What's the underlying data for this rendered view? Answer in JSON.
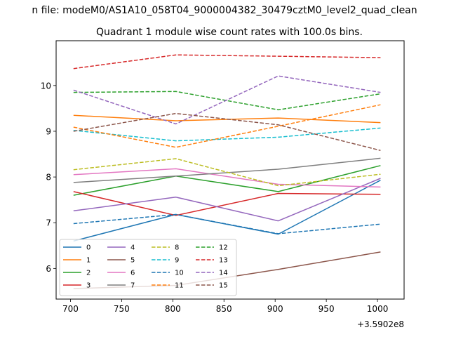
{
  "chart_data": {
    "type": "line",
    "suptitle": "n file: modeM0/AS1A10_058T04_9000004382_30479cztM0_level2_quad_clean",
    "title": "Quadrant 1 module wise count rates with 100.0s bins.",
    "xlabel": "",
    "ylabel": "",
    "x_offset_text": "+3.5902e8",
    "x_ticks": [
      "700",
      "750",
      "800",
      "850",
      "900",
      "950",
      "1000"
    ],
    "y_ticks": [
      "6",
      "7",
      "8",
      "9",
      "10"
    ],
    "xlim": [
      686,
      1026
    ],
    "ylim": [
      5.33,
      10.98
    ],
    "grid": false,
    "legend_position": "lower-left",
    "legend_columns": 4,
    "x": [
      703,
      803,
      903,
      1003
    ],
    "series": [
      {
        "name": "0",
        "color": "#1f77b4",
        "dash": "solid",
        "values": [
          6.6,
          7.18,
          6.75,
          7.93
        ]
      },
      {
        "name": "1",
        "color": "#ff7f0e",
        "dash": "solid",
        "values": [
          9.35,
          9.23,
          9.29,
          9.19
        ]
      },
      {
        "name": "2",
        "color": "#2ca02c",
        "dash": "solid",
        "values": [
          7.6,
          8.02,
          7.68,
          8.25
        ]
      },
      {
        "name": "3",
        "color": "#d62728",
        "dash": "solid",
        "values": [
          7.68,
          7.16,
          7.64,
          7.62
        ]
      },
      {
        "name": "4",
        "color": "#9467bd",
        "dash": "solid",
        "values": [
          7.26,
          7.56,
          7.04,
          7.97
        ]
      },
      {
        "name": "5",
        "color": "#8c564b",
        "dash": "solid",
        "values": [
          5.56,
          5.63,
          5.98,
          6.36
        ]
      },
      {
        "name": "6",
        "color": "#e377c2",
        "dash": "solid",
        "values": [
          8.05,
          8.18,
          7.84,
          7.78
        ]
      },
      {
        "name": "7",
        "color": "#7f7f7f",
        "dash": "solid",
        "values": [
          7.88,
          8.02,
          8.17,
          8.41
        ]
      },
      {
        "name": "8",
        "color": "#bcbd22",
        "dash": "dashed",
        "values": [
          8.16,
          8.4,
          7.81,
          8.06
        ]
      },
      {
        "name": "9",
        "color": "#17becf",
        "dash": "dashed",
        "values": [
          9.02,
          8.79,
          8.87,
          9.07
        ]
      },
      {
        "name": "10",
        "color": "#1f77b4",
        "dash": "dashed",
        "values": [
          6.98,
          7.18,
          6.76,
          6.97
        ]
      },
      {
        "name": "11",
        "color": "#ff7f0e",
        "dash": "dashed",
        "values": [
          9.09,
          8.65,
          9.11,
          9.58
        ]
      },
      {
        "name": "12",
        "color": "#2ca02c",
        "dash": "dashed",
        "values": [
          9.85,
          9.87,
          9.47,
          9.82
        ]
      },
      {
        "name": "13",
        "color": "#d62728",
        "dash": "dashed",
        "values": [
          10.37,
          10.67,
          10.64,
          10.61
        ]
      },
      {
        "name": "14",
        "color": "#9467bd",
        "dash": "dashed",
        "values": [
          9.9,
          9.16,
          10.21,
          9.85
        ]
      },
      {
        "name": "15",
        "color": "#8c564b",
        "dash": "dashed",
        "values": [
          9.0,
          9.39,
          9.14,
          8.58
        ]
      }
    ]
  }
}
